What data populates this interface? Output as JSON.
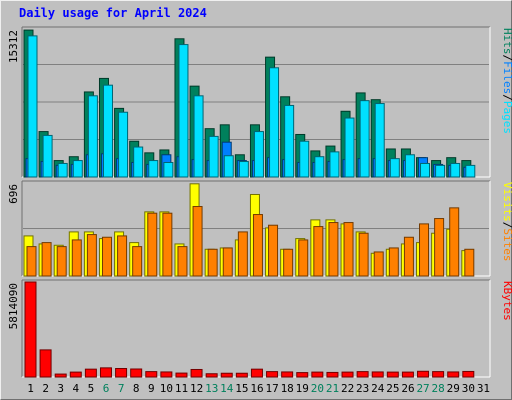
{
  "title": "Daily usage for April 2024",
  "chart_data": [
    {
      "type": "bar",
      "panel": "hits-files-pages",
      "max_label": "15312",
      "ymax": 15312,
      "legend": [
        {
          "name": "Pages",
          "color": "#00e0ff"
        },
        {
          "name": "/",
          "color": "#000000"
        },
        {
          "name": "Files",
          "color": "#0080ff"
        },
        {
          "name": "/",
          "color": "#000000"
        },
        {
          "name": "Hits",
          "color": "#00805c"
        }
      ],
      "categories": [
        "1",
        "2",
        "3",
        "4",
        "5",
        "6",
        "7",
        "8",
        "9",
        "10",
        "11",
        "12",
        "13",
        "14",
        "15",
        "16",
        "17",
        "18",
        "19",
        "20",
        "21",
        "22",
        "23",
        "24",
        "25",
        "26",
        "27",
        "28",
        "29",
        "30",
        "31"
      ],
      "series": [
        {
          "name": "Hits",
          "color": "#00805c",
          "values": [
            15200,
            4700,
            1700,
            2100,
            8800,
            10200,
            7100,
            3700,
            2500,
            2800,
            14300,
            9400,
            5000,
            5400,
            2300,
            5400,
            12400,
            8300,
            4400,
            2700,
            3200,
            6800,
            8700,
            8000,
            2900,
            2900,
            2000,
            1700,
            2000,
            1700,
            0
          ]
        },
        {
          "name": "Files",
          "color": "#0080ff",
          "values": [
            1900,
            1600,
            1200,
            1300,
            2300,
            2400,
            1900,
            1500,
            1300,
            2300,
            2100,
            1800,
            1700,
            3600,
            1700,
            1700,
            2000,
            1800,
            1500,
            1500,
            1600,
            1800,
            1900,
            1900,
            1700,
            1700,
            2000,
            1300,
            1200,
            1000,
            0
          ]
        },
        {
          "name": "Pages",
          "color": "#00e0ff",
          "values": [
            14600,
            4300,
            1400,
            1700,
            8400,
            9500,
            6700,
            3100,
            1700,
            1500,
            13700,
            8400,
            4200,
            2200,
            1600,
            4700,
            11300,
            7400,
            3700,
            2100,
            2600,
            6100,
            7900,
            7600,
            1900,
            2300,
            1400,
            1200,
            1400,
            1200,
            0
          ]
        }
      ]
    },
    {
      "type": "bar",
      "panel": "visits-sites",
      "max_label": "696",
      "ymax": 696,
      "legend": [
        {
          "name": "Sites",
          "color": "#ff8000"
        },
        {
          "name": "/",
          "color": "#000000"
        },
        {
          "name": "Visits",
          "color": "#ffff00"
        }
      ],
      "categories": [
        "1",
        "2",
        "3",
        "4",
        "5",
        "6",
        "7",
        "8",
        "9",
        "10",
        "11",
        "12",
        "13",
        "14",
        "15",
        "16",
        "17",
        "18",
        "19",
        "20",
        "21",
        "22",
        "23",
        "24",
        "25",
        "26",
        "27",
        "28",
        "29",
        "30",
        "31"
      ],
      "series": [
        {
          "name": "Visits",
          "color": "#ffff00",
          "values": [
            300,
            240,
            230,
            330,
            330,
            280,
            330,
            250,
            480,
            480,
            240,
            690,
            200,
            210,
            270,
            610,
            360,
            200,
            280,
            420,
            420,
            390,
            330,
            170,
            200,
            240,
            250,
            320,
            350,
            190,
            0
          ]
        },
        {
          "name": "Sites",
          "color": "#ff8000",
          "values": [
            220,
            250,
            220,
            270,
            310,
            290,
            300,
            220,
            470,
            470,
            220,
            520,
            200,
            210,
            330,
            460,
            380,
            200,
            270,
            370,
            400,
            400,
            320,
            180,
            210,
            290,
            390,
            430,
            510,
            200,
            0
          ]
        }
      ]
    },
    {
      "type": "bar",
      "panel": "kbytes",
      "max_label": "5814090",
      "ymax": 5814090,
      "legend": [
        {
          "name": "KBytes",
          "color": "#ff0000"
        }
      ],
      "categories": [
        "1",
        "2",
        "3",
        "4",
        "5",
        "6",
        "7",
        "8",
        "9",
        "10",
        "11",
        "12",
        "13",
        "14",
        "15",
        "16",
        "17",
        "18",
        "19",
        "20",
        "21",
        "22",
        "23",
        "24",
        "25",
        "26",
        "27",
        "28",
        "29",
        "30",
        "31"
      ],
      "series": [
        {
          "name": "KBytes",
          "color": "#ff0000",
          "values": [
            5814090,
            1660000,
            180000,
            300000,
            480000,
            560000,
            520000,
            490000,
            330000,
            310000,
            240000,
            460000,
            200000,
            230000,
            230000,
            480000,
            330000,
            310000,
            270000,
            300000,
            280000,
            300000,
            330000,
            310000,
            300000,
            300000,
            350000,
            330000,
            310000,
            340000,
            0
          ]
        }
      ]
    }
  ],
  "day_labels": [
    {
      "text": "1",
      "color": "#000000"
    },
    {
      "text": "2",
      "color": "#000000"
    },
    {
      "text": "3",
      "color": "#000000"
    },
    {
      "text": "4",
      "color": "#000000"
    },
    {
      "text": "5",
      "color": "#000000"
    },
    {
      "text": "6",
      "color": "#00805c"
    },
    {
      "text": "7",
      "color": "#00805c"
    },
    {
      "text": "8",
      "color": "#000000"
    },
    {
      "text": "9",
      "color": "#000000"
    },
    {
      "text": "10",
      "color": "#000000"
    },
    {
      "text": "11",
      "color": "#000000"
    },
    {
      "text": "12",
      "color": "#000000"
    },
    {
      "text": "13",
      "color": "#00805c"
    },
    {
      "text": "14",
      "color": "#00805c"
    },
    {
      "text": "15",
      "color": "#000000"
    },
    {
      "text": "16",
      "color": "#000000"
    },
    {
      "text": "17",
      "color": "#000000"
    },
    {
      "text": "18",
      "color": "#000000"
    },
    {
      "text": "19",
      "color": "#000000"
    },
    {
      "text": "20",
      "color": "#00805c"
    },
    {
      "text": "21",
      "color": "#00805c"
    },
    {
      "text": "22",
      "color": "#000000"
    },
    {
      "text": "23",
      "color": "#000000"
    },
    {
      "text": "24",
      "color": "#000000"
    },
    {
      "text": "25",
      "color": "#000000"
    },
    {
      "text": "26",
      "color": "#000000"
    },
    {
      "text": "27",
      "color": "#00805c"
    },
    {
      "text": "28",
      "color": "#00805c"
    },
    {
      "text": "29",
      "color": "#000000"
    },
    {
      "text": "30",
      "color": "#000000"
    },
    {
      "text": "31",
      "color": "#000000"
    }
  ]
}
